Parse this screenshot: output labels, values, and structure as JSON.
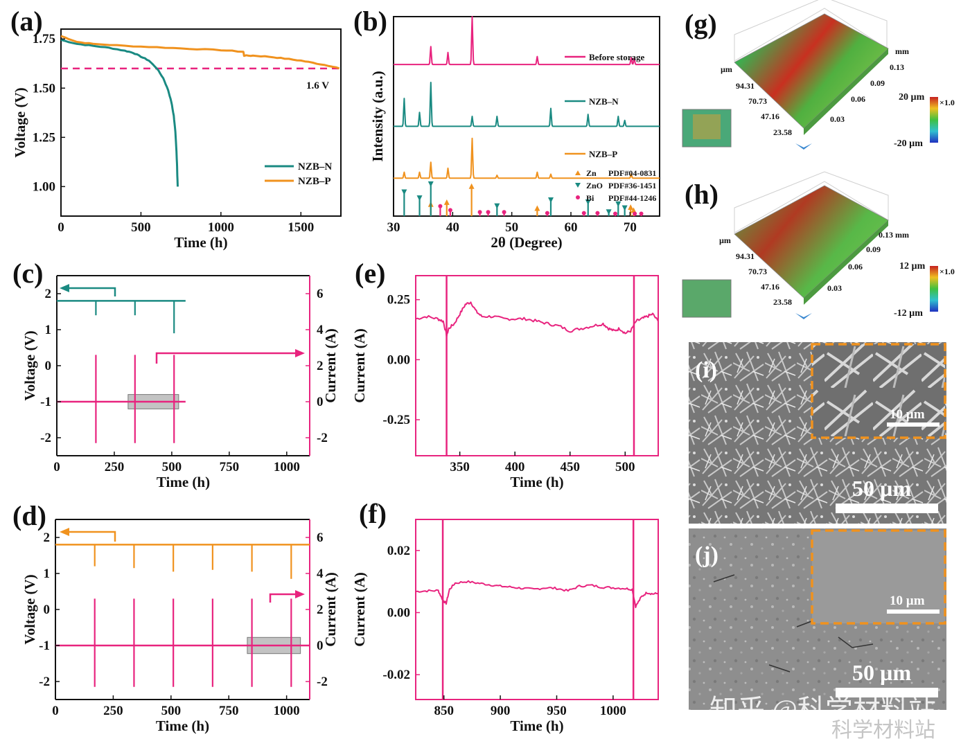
{
  "figure": {
    "panel_letters": [
      "(a)",
      "(b)",
      "(c)",
      "(d)",
      "(e)",
      "(f)",
      "(g)",
      "(h)",
      "(i)",
      "(j)"
    ],
    "watermark_main": "知乎 @科学材料站",
    "watermark_corner": "科学材料站",
    "colors": {
      "teal": "#1a8a82",
      "orange": "#f0921e",
      "pink": "#e8237e",
      "gray_box": "#a9a9a9"
    }
  },
  "chart_data": [
    {
      "id": "a",
      "type": "line",
      "xlabel": "Time (h)",
      "ylabel": "Voltage (V)",
      "xlim": [
        0,
        1750
      ],
      "ylim": [
        0.85,
        1.8
      ],
      "xticks": [
        0,
        500,
        1000,
        1500
      ],
      "yticks": [
        1.0,
        1.25,
        1.5,
        1.75
      ],
      "ytick_labels": [
        "1.00",
        "1.25",
        "1.50",
        "1.75"
      ],
      "reference_line": {
        "y": 1.6,
        "label": "1.6 V"
      },
      "series": [
        {
          "name": "NZB–N",
          "color": "#1a8a82",
          "x": [
            0,
            100,
            200,
            300,
            400,
            450,
            500,
            550,
            600,
            640,
            670,
            690,
            705,
            715,
            722,
            726,
            728,
            730
          ],
          "y": [
            1.745,
            1.725,
            1.715,
            1.705,
            1.69,
            1.68,
            1.66,
            1.64,
            1.6,
            1.55,
            1.49,
            1.43,
            1.36,
            1.28,
            1.18,
            1.1,
            1.04,
            1.0
          ]
        },
        {
          "name": "NZB–P",
          "color": "#f0921e",
          "x": [
            0,
            100,
            200,
            400,
            600,
            800,
            1000,
            1140,
            1145,
            1200,
            1300,
            1400,
            1500,
            1600,
            1700,
            1740
          ],
          "y": [
            1.765,
            1.735,
            1.725,
            1.715,
            1.708,
            1.7,
            1.693,
            1.685,
            1.665,
            1.665,
            1.66,
            1.65,
            1.64,
            1.625,
            1.61,
            1.6
          ]
        }
      ]
    },
    {
      "id": "b",
      "type": "line",
      "xlabel": "2θ (Degree)",
      "ylabel": "Intensity (a.u.)",
      "xlim": [
        30,
        75
      ],
      "xticks": [
        30,
        40,
        50,
        60,
        70
      ],
      "series": [
        {
          "name": "Before storage",
          "color": "#e8237e",
          "offset": 0.76,
          "peaks": [
            [
              36.3,
              0.09
            ],
            [
              39.2,
              0.06
            ],
            [
              43.3,
              0.24
            ],
            [
              54.3,
              0.04
            ],
            [
              70.2,
              0.035
            ],
            [
              70.7,
              0.03
            ]
          ]
        },
        {
          "name": "NZB–N",
          "color": "#1a8a82",
          "offset": 0.45,
          "peaks": [
            [
              31.8,
              0.14
            ],
            [
              34.4,
              0.07
            ],
            [
              36.3,
              0.22
            ],
            [
              43.3,
              0.05
            ],
            [
              47.5,
              0.05
            ],
            [
              56.6,
              0.09
            ],
            [
              62.9,
              0.06
            ],
            [
              68.0,
              0.05
            ],
            [
              69.1,
              0.03
            ]
          ]
        },
        {
          "name": "NZB–P",
          "color": "#f0921e",
          "offset": 0.19,
          "peaks": [
            [
              31.8,
              0.03
            ],
            [
              34.4,
              0.03
            ],
            [
              36.3,
              0.08
            ],
            [
              39.2,
              0.05
            ],
            [
              43.3,
              0.2
            ],
            [
              47.5,
              0.015
            ],
            [
              54.3,
              0.03
            ],
            [
              56.6,
              0.02
            ],
            [
              70.2,
              0.02
            ]
          ]
        }
      ],
      "reference_sets": [
        {
          "label": "Zn",
          "pdf": "PDF#04-0831",
          "color": "#f0921e",
          "marker": "triangle-up",
          "lines": [
            [
              36.3,
              0.06
            ],
            [
              39.0,
              0.07
            ],
            [
              43.2,
              0.15
            ],
            [
              54.3,
              0.04
            ],
            [
              70.1,
              0.045
            ],
            [
              70.6,
              0.03
            ]
          ]
        },
        {
          "label": "ZnO",
          "pdf": "PDF#36-1451",
          "color": "#1a8a82",
          "marker": "triangle-down",
          "lines": [
            [
              31.8,
              0.12
            ],
            [
              34.4,
              0.09
            ],
            [
              36.3,
              0.16
            ],
            [
              47.5,
              0.05
            ],
            [
              56.6,
              0.08
            ],
            [
              62.9,
              0.07
            ],
            [
              66.4,
              0.02
            ],
            [
              68.0,
              0.06
            ],
            [
              69.1,
              0.04
            ]
          ]
        },
        {
          "label": "Bi",
          "pdf": "PDF#44-1246",
          "color": "#e8237e",
          "marker": "circle",
          "lines": [
            [
              37.9,
              0.05
            ],
            [
              39.6,
              0.03
            ],
            [
              44.6,
              0.02
            ],
            [
              46.0,
              0.02
            ],
            [
              48.7,
              0.02
            ],
            [
              56.0,
              0.015
            ],
            [
              62.2,
              0.015
            ],
            [
              64.5,
              0.015
            ],
            [
              67.5,
              0.012
            ],
            [
              70.8,
              0.012
            ],
            [
              71.9,
              0.012
            ]
          ]
        }
      ]
    },
    {
      "id": "c",
      "type": "line",
      "xlabel": "Time (h)",
      "ylabel": "Voltage (V)",
      "ylabel_right": "Current (A)",
      "xlim": [
        0,
        1100
      ],
      "ylim": [
        -2.5,
        2.5
      ],
      "ylim_right": [
        -3.0,
        7.0
      ],
      "xticks": [
        0,
        250,
        500,
        750,
        1000
      ],
      "yticks": [
        -2,
        -1,
        0,
        1,
        2
      ],
      "yticks_right": [
        -2,
        0,
        2,
        4,
        6
      ],
      "voltage": {
        "color": "#1a8a82",
        "level": 1.8,
        "t_end": 560,
        "spikes": [
          [
            170,
            1.4
          ],
          [
            340,
            1.4
          ],
          [
            510,
            0.9
          ]
        ]
      },
      "current": {
        "color": "#e8237e",
        "level": 0.0,
        "t_end": 560,
        "spikes": [
          170,
          340,
          510
        ],
        "spike_top": 2.6,
        "spike_bottom": -2.3
      },
      "box": {
        "x0": 310,
        "x1": 530,
        "y0": -0.4,
        "y1": 0.4
      }
    },
    {
      "id": "d",
      "type": "line",
      "xlabel": "Time (h)",
      "ylabel": "Voltage (V)",
      "ylabel_right": "Current (A)",
      "xlim": [
        0,
        1100
      ],
      "ylim": [
        -2.5,
        2.5
      ],
      "ylim_right": [
        -3.0,
        7.0
      ],
      "xticks": [
        0,
        250,
        500,
        750,
        1000
      ],
      "yticks": [
        -2,
        -1,
        0,
        1,
        2
      ],
      "yticks_right": [
        -2,
        0,
        2,
        4,
        6
      ],
      "voltage": {
        "color": "#f0921e",
        "level": 1.8,
        "t_end": 1100,
        "spikes": [
          [
            170,
            1.2
          ],
          [
            340,
            1.15
          ],
          [
            510,
            1.05
          ],
          [
            680,
            1.1
          ],
          [
            850,
            1.05
          ],
          [
            1020,
            0.85
          ]
        ]
      },
      "current": {
        "color": "#e8237e",
        "level": 0.0,
        "t_end": 1100,
        "spikes": [
          170,
          340,
          510,
          680,
          850,
          1020
        ],
        "spike_top": 2.6,
        "spike_bottom": -2.3
      },
      "box": {
        "x0": 830,
        "x1": 1060,
        "y0": -0.45,
        "y1": 0.45
      }
    },
    {
      "id": "e",
      "type": "line",
      "xlabel": "Time (h)",
      "ylabel": "Current (A)",
      "xlim": [
        310,
        530
      ],
      "ylim": [
        -0.4,
        0.35
      ],
      "xticks": [
        350,
        400,
        450,
        500
      ],
      "yticks": [
        -0.25,
        0.0,
        0.25
      ],
      "ytick_labels": [
        "-0.25",
        "0.00",
        "0.25"
      ],
      "series": [
        {
          "name": "current",
          "color": "#e8237e",
          "x": [
            310,
            320,
            330,
            335,
            338,
            340,
            345,
            350,
            355,
            360,
            365,
            370,
            380,
            390,
            400,
            410,
            420,
            430,
            440,
            450,
            460,
            470,
            480,
            485,
            490,
            495,
            500,
            505,
            510,
            515,
            520,
            525,
            530
          ],
          "y": [
            0.17,
            0.18,
            0.17,
            0.16,
            0.1,
            0.13,
            0.15,
            0.19,
            0.23,
            0.24,
            0.2,
            0.18,
            0.18,
            0.17,
            0.17,
            0.17,
            0.16,
            0.15,
            0.14,
            0.12,
            0.13,
            0.14,
            0.15,
            0.13,
            0.12,
            0.13,
            0.11,
            0.12,
            0.16,
            0.17,
            0.18,
            0.19,
            0.16
          ]
        }
      ],
      "spikes": [
        338,
        508
      ]
    },
    {
      "id": "f",
      "type": "line",
      "xlabel": "Time (h)",
      "ylabel": "Current (A)",
      "xlim": [
        825,
        1040
      ],
      "ylim": [
        -0.028,
        0.03
      ],
      "xticks": [
        850,
        900,
        950,
        1000
      ],
      "yticks": [
        -0.02,
        0.0,
        0.02
      ],
      "ytick_labels": [
        "-0.02",
        "0.00",
        "0.02"
      ],
      "series": [
        {
          "name": "current",
          "color": "#e8237e",
          "x": [
            825,
            835,
            845,
            849,
            852,
            855,
            860,
            870,
            880,
            890,
            900,
            910,
            920,
            930,
            940,
            950,
            960,
            970,
            980,
            990,
            1000,
            1010,
            1017,
            1020,
            1025,
            1030,
            1035,
            1040
          ],
          "y": [
            0.0068,
            0.007,
            0.0071,
            0.004,
            0.003,
            0.0075,
            0.0095,
            0.01,
            0.0095,
            0.009,
            0.0085,
            0.0082,
            0.0078,
            0.0075,
            0.008,
            0.0078,
            0.007,
            0.0085,
            0.0088,
            0.0082,
            0.008,
            0.0078,
            0.0075,
            0.002,
            0.005,
            0.0065,
            0.006,
            0.0062
          ]
        }
      ],
      "spikes": [
        849,
        1018
      ]
    },
    {
      "id": "g",
      "type": "surface-3d",
      "axis_ticks_left": [
        "94.31",
        "70.73",
        "47.16",
        "23.58"
      ],
      "axis_unit_left": "µm",
      "axis_ticks_right": [
        "0.13",
        "0.09",
        "0.06",
        "0.03"
      ],
      "axis_unit_right": "mm",
      "colorbar_top": "20 µm",
      "colorbar_bottom": "-20 µm",
      "scale_factor": "×1.0"
    },
    {
      "id": "h",
      "type": "surface-3d",
      "axis_ticks_left": [
        "94.31",
        "70.73",
        "47.16",
        "23.58"
      ],
      "axis_unit_left": "µm",
      "axis_ticks_right": [
        "0.13 mm",
        "0.09",
        "0.06",
        "0.03"
      ],
      "colorbar_top": "12 µm",
      "colorbar_bottom": "-12 µm",
      "scale_factor": "×1.0"
    },
    {
      "id": "i",
      "type": "micrograph",
      "scale_main": "50 µm",
      "scale_inset": "10 µm"
    },
    {
      "id": "j",
      "type": "micrograph",
      "scale_main": "50 µm",
      "scale_inset": "10 µm"
    }
  ]
}
